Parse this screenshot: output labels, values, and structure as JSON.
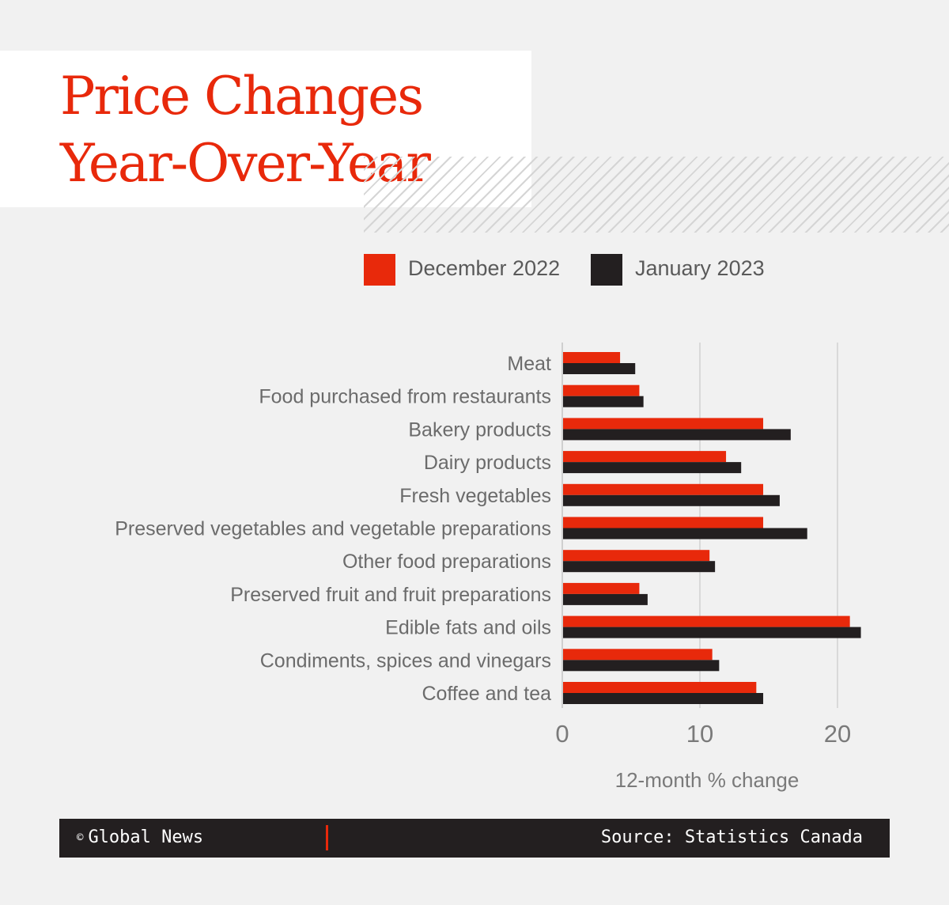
{
  "title": {
    "line1": "Price Changes",
    "line2": "Year-Over-Year"
  },
  "colors": {
    "dec": "#e8290b",
    "jan": "#231f20",
    "title": "#e8290b",
    "grid": "#d9d9d9",
    "label": "#6b6b6b"
  },
  "chart_data": {
    "type": "bar",
    "orientation": "horizontal",
    "categories": [
      "Meat",
      "Food purchased from restaurants",
      "Bakery products",
      "Dairy products",
      "Fresh vegetables",
      "Preserved vegetables and vegetable preparations",
      "Other food preparations",
      "Preserved fruit and fruit preparations",
      "Edible fats and oils",
      "Condiments, spices and vinegars",
      "Coffee and tea"
    ],
    "series": [
      {
        "name": "December 2022",
        "values": [
          4.2,
          5.6,
          14.6,
          11.9,
          14.6,
          14.6,
          10.7,
          5.6,
          20.9,
          10.9,
          14.1
        ]
      },
      {
        "name": "January 2023",
        "values": [
          5.3,
          5.9,
          16.6,
          13.0,
          15.8,
          17.8,
          11.1,
          6.2,
          21.7,
          11.4,
          14.6
        ]
      }
    ],
    "xlabel": "12-month % change",
    "xticks": [
      0,
      10,
      20
    ],
    "xlim": [
      0,
      22
    ],
    "grid": true,
    "legend": "top"
  },
  "footer": {
    "copyright_symbol": "©",
    "publisher": "Global News",
    "source": "Source: Statistics Canada"
  }
}
